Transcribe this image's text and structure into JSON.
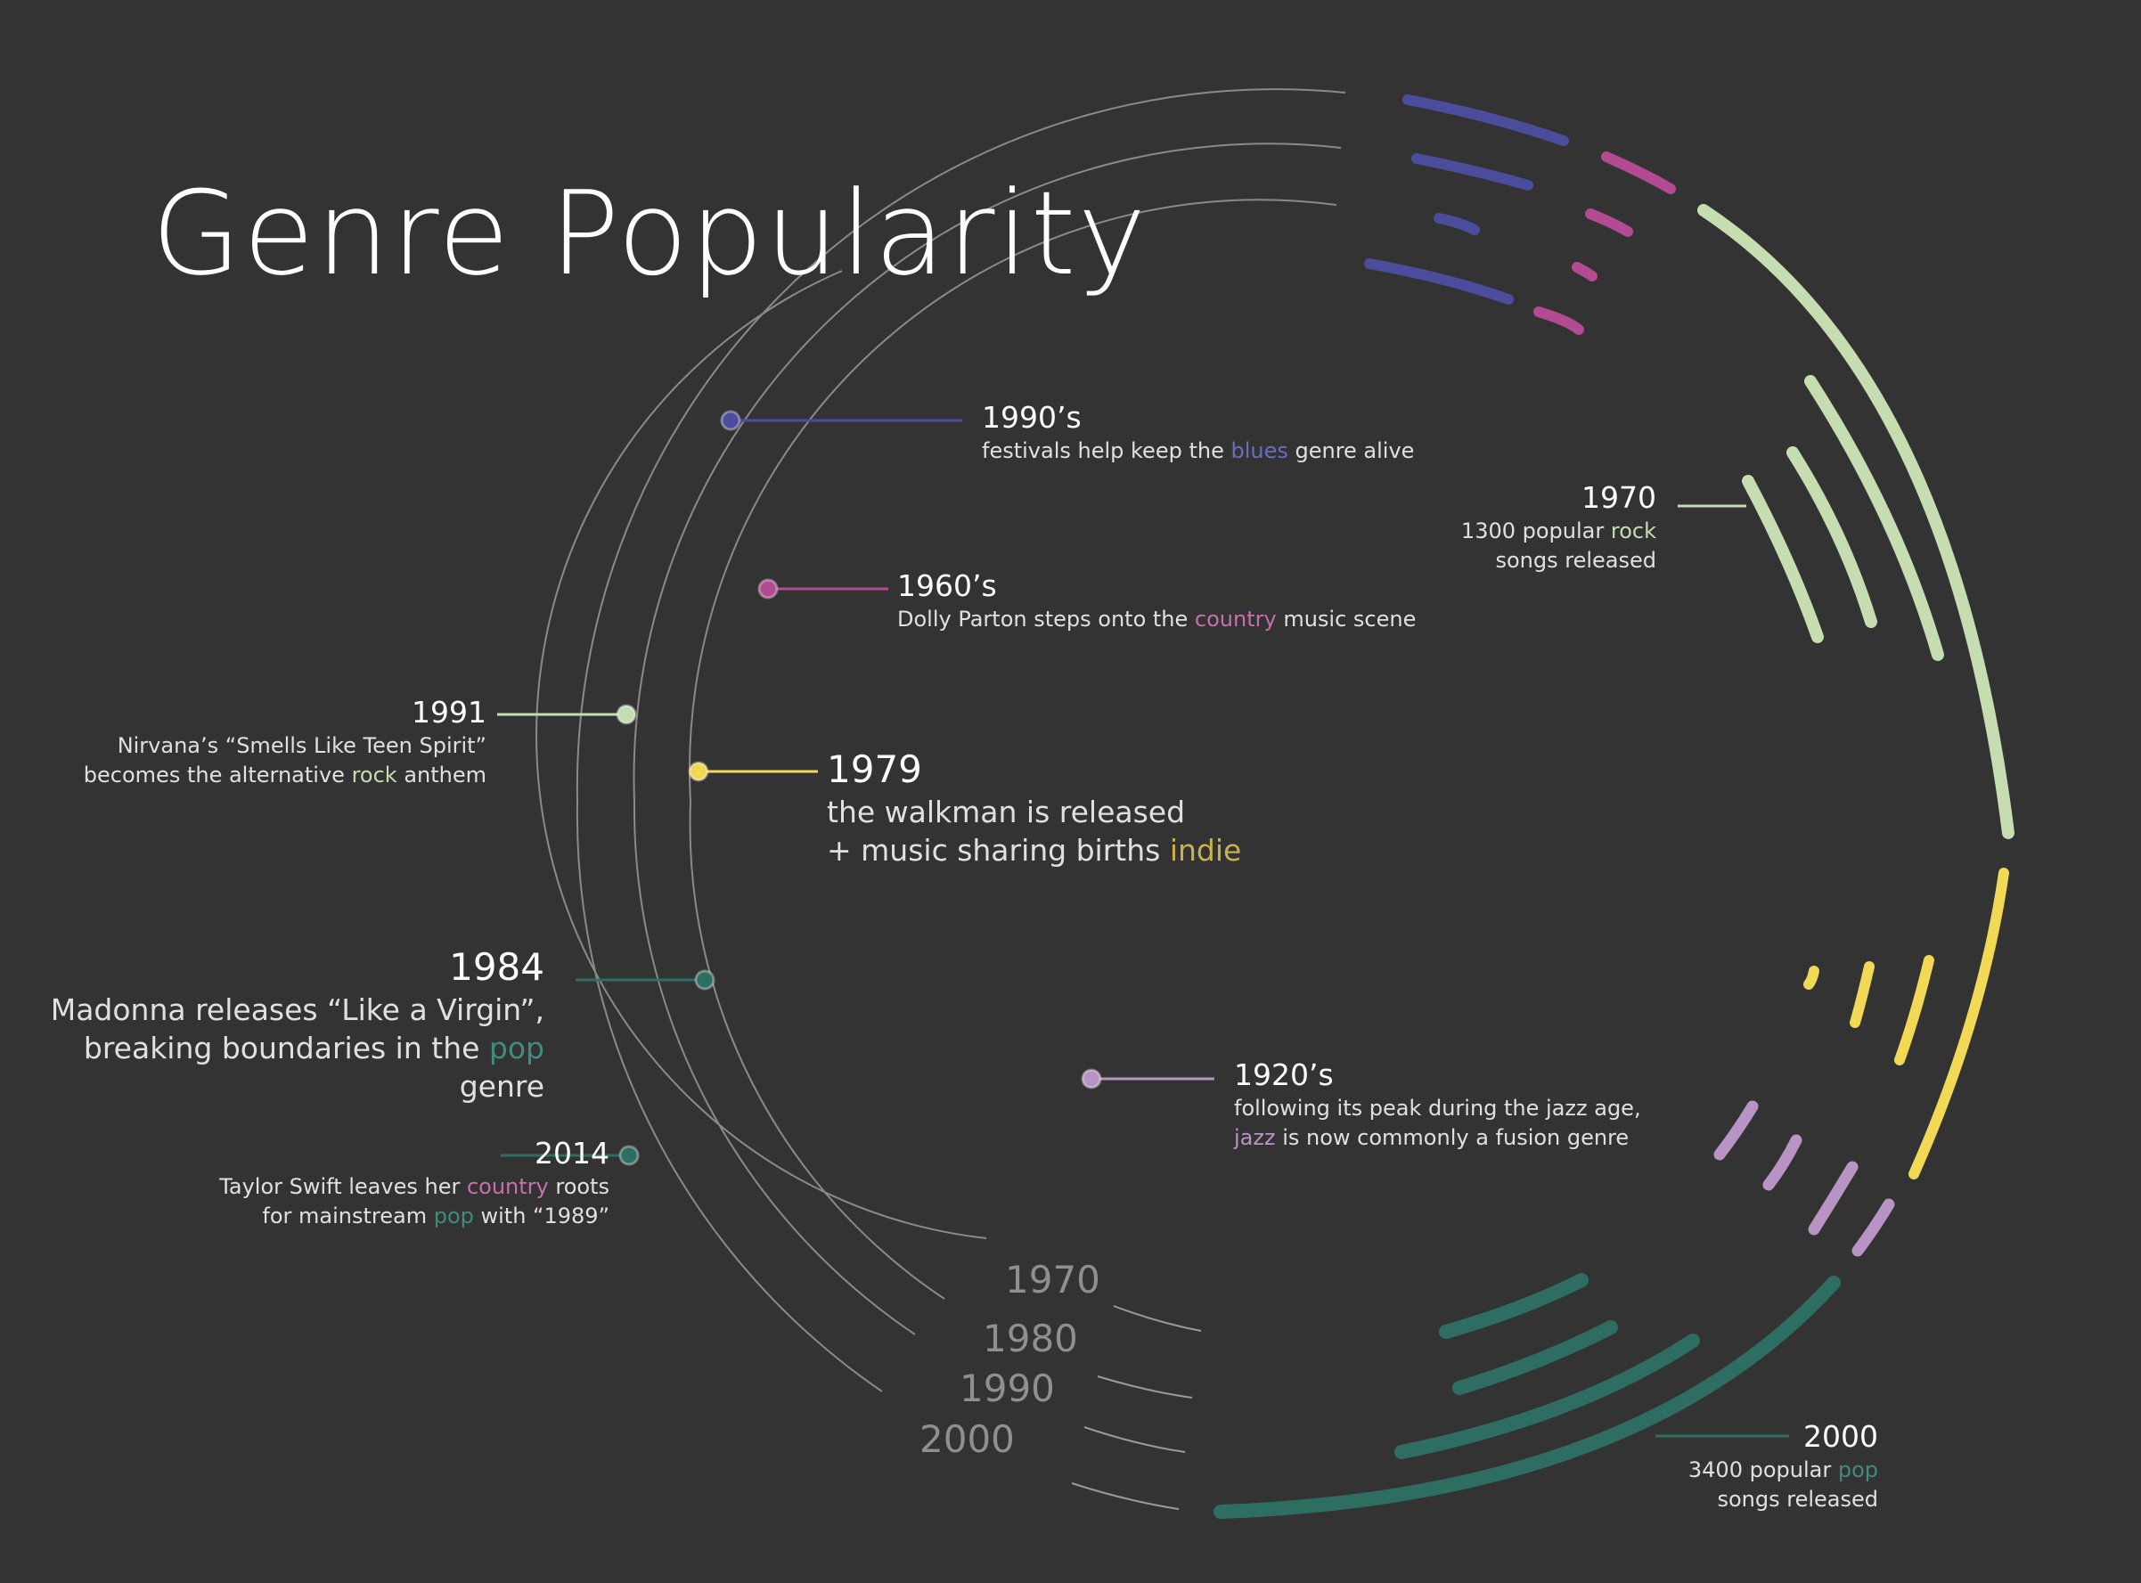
{
  "title": "Genre Popularity",
  "colors": {
    "background": "#333333",
    "ring": "#8a8a8a",
    "blues": "#4b4d9c",
    "country": "#b34b93",
    "rock": "#c5ddb1",
    "indie": "#f1d955",
    "jazz": "#b794c3",
    "pop": "#2e6e62"
  },
  "annotations": {
    "a1990s": {
      "year": "1990’s",
      "pre": "festivals help keep the ",
      "genre": "blues",
      "post": " genre alive"
    },
    "a1960s": {
      "year": "1960’s",
      "pre": "Dolly Parton steps onto the ",
      "genre": "country",
      "post": " music scene"
    },
    "a1970": {
      "year": "1970",
      "line1": "1300 popular ",
      "genre": "rock",
      "line2": "songs released"
    },
    "a1991": {
      "year": "1991",
      "line1": "Nirvana’s “Smells Like Teen Spirit”",
      "pre": "becomes the alternative ",
      "genre": "rock",
      "post": " anthem"
    },
    "a1979": {
      "year": "1979",
      "line1": "the walkman is released",
      "pre": "+ music sharing births ",
      "genre": "indie"
    },
    "a1984": {
      "year": "1984",
      "line1": "Madonna releases “Like a Virgin”,",
      "pre": "breaking boundaries in the ",
      "genre": "pop",
      "post": " genre"
    },
    "a1920s": {
      "year": "1920’s",
      "line1": "following its peak during the jazz age,",
      "genre": "jazz",
      "post": " is now commonly a fusion genre"
    },
    "a2014": {
      "year": "2014",
      "pre1": "Taylor Swift leaves her ",
      "genre1": "country",
      "post1": " roots",
      "pre2": "for mainstream ",
      "genre2": "pop",
      "post2": " with “1989”"
    },
    "a2000": {
      "year": "2000",
      "pre": "3400 popular ",
      "genre": "pop",
      "line2": "songs released"
    }
  },
  "chart_data": {
    "type": "radial-timeline",
    "title": "Genre Popularity",
    "rings": [
      "1970",
      "1980",
      "1990",
      "2000"
    ],
    "genres": [
      {
        "name": "blues",
        "color": "#4b4d9c",
        "arcs": [
          {
            "ring": "1970",
            "level": 2
          },
          {
            "ring": "1980",
            "level": 1
          },
          {
            "ring": "1990",
            "level": 2
          },
          {
            "ring": "2000",
            "level": 2
          }
        ]
      },
      {
        "name": "country",
        "color": "#b34b93",
        "arcs": [
          {
            "ring": "1970",
            "level": 1
          },
          {
            "ring": "1980",
            "level": 0
          },
          {
            "ring": "1990",
            "level": 1
          },
          {
            "ring": "2000",
            "level": 1
          }
        ]
      },
      {
        "name": "rock",
        "color": "#c5ddb1",
        "arcs": [
          {
            "ring": "1970",
            "level": 2
          },
          {
            "ring": "1980",
            "level": 3
          },
          {
            "ring": "1990",
            "level": 4
          },
          {
            "ring": "2000",
            "level": 5
          }
        ]
      },
      {
        "name": "indie",
        "color": "#f1d955",
        "arcs": [
          {
            "ring": "1970",
            "level": 0
          },
          {
            "ring": "1980",
            "level": 1
          },
          {
            "ring": "1990",
            "level": 2
          },
          {
            "ring": "2000",
            "level": 5
          }
        ]
      },
      {
        "name": "jazz",
        "color": "#b794c3",
        "arcs": [
          {
            "ring": "1970",
            "level": 1
          },
          {
            "ring": "1980",
            "level": 1
          },
          {
            "ring": "1990",
            "level": 1
          },
          {
            "ring": "2000",
            "level": 1
          }
        ]
      },
      {
        "name": "pop",
        "color": "#2e6e62",
        "arcs": [
          {
            "ring": "1970",
            "level": 2
          },
          {
            "ring": "1980",
            "level": 3
          },
          {
            "ring": "1990",
            "level": 4
          },
          {
            "ring": "2000",
            "level": 6
          }
        ]
      }
    ],
    "values": [
      {
        "year": 1970,
        "genre": "rock",
        "songs_released": 1300
      },
      {
        "year": 2000,
        "genre": "pop",
        "songs_released": 3400
      }
    ]
  }
}
